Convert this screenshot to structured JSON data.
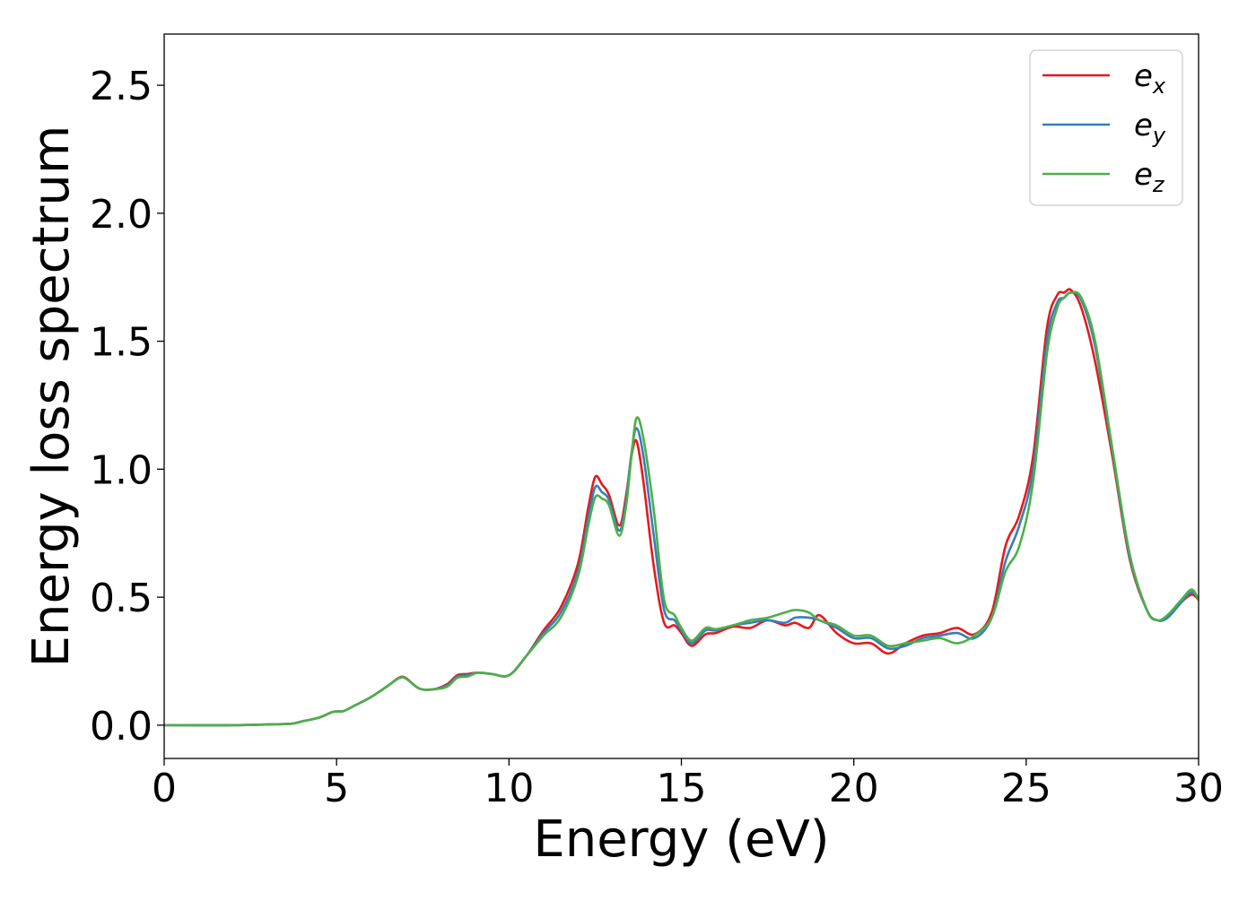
{
  "chart_data": {
    "type": "line",
    "title": "",
    "xlabel": "Energy (eV)",
    "ylabel": "Energy loss spectrum",
    "xlim": [
      0,
      30
    ],
    "ylim": [
      -0.13,
      2.7
    ],
    "xticks": [
      0,
      5,
      10,
      15,
      20,
      25,
      30
    ],
    "xtick_labels": [
      "0",
      "5",
      "10",
      "15",
      "20",
      "25",
      "30"
    ],
    "yticks": [
      0.0,
      0.5,
      1.0,
      1.5,
      2.0,
      2.5
    ],
    "ytick_labels": [
      "0.0",
      "0.5",
      "1.0",
      "1.5",
      "2.0",
      "2.5"
    ],
    "grid": false,
    "legend_position": "top-right",
    "series": [
      {
        "name": "e_x",
        "label_base": "e",
        "label_sub": "x",
        "color": "#e41a1c",
        "x": [
          0,
          2,
          3,
          3.7,
          4,
          4.5,
          4.9,
          5.2,
          5.5,
          6,
          6.5,
          6.8,
          7,
          7.4,
          7.8,
          8.2,
          8.5,
          8.8,
          9.1,
          9.5,
          10,
          10.5,
          11,
          11.5,
          12,
          12.3,
          12.5,
          12.7,
          12.9,
          13.2,
          13.4,
          13.55,
          13.7,
          13.9,
          14.2,
          14.5,
          14.8,
          15,
          15.3,
          15.7,
          16,
          16.5,
          17,
          17.5,
          18,
          18.3,
          18.7,
          19,
          19.5,
          20,
          20.5,
          21,
          21.5,
          22,
          22.5,
          23,
          23.5,
          24,
          24.4,
          24.8,
          25.2,
          25.6,
          25.9,
          26.1,
          26.3,
          26.6,
          27,
          27.5,
          28,
          28.5,
          28.8,
          29.1,
          29.5,
          29.8,
          30
        ],
        "values": [
          0.0,
          0.0,
          0.003,
          0.006,
          0.015,
          0.03,
          0.052,
          0.055,
          0.075,
          0.11,
          0.155,
          0.185,
          0.185,
          0.143,
          0.14,
          0.16,
          0.195,
          0.2,
          0.205,
          0.2,
          0.195,
          0.27,
          0.37,
          0.46,
          0.63,
          0.85,
          0.97,
          0.94,
          0.9,
          0.78,
          0.9,
          1.05,
          1.11,
          0.95,
          0.62,
          0.4,
          0.39,
          0.36,
          0.31,
          0.355,
          0.36,
          0.385,
          0.38,
          0.41,
          0.39,
          0.4,
          0.38,
          0.43,
          0.36,
          0.32,
          0.32,
          0.28,
          0.32,
          0.35,
          0.36,
          0.38,
          0.355,
          0.44,
          0.7,
          0.82,
          1.05,
          1.55,
          1.68,
          1.69,
          1.7,
          1.63,
          1.42,
          1.05,
          0.65,
          0.45,
          0.41,
          0.42,
          0.48,
          0.51,
          0.49
        ]
      },
      {
        "name": "e_y",
        "label_base": "e",
        "label_sub": "y",
        "color": "#377eb8",
        "x": [
          0,
          2,
          3,
          3.7,
          4,
          4.5,
          4.9,
          5.2,
          5.5,
          6,
          6.5,
          6.8,
          7,
          7.4,
          7.8,
          8.2,
          8.5,
          8.8,
          9.1,
          9.5,
          10,
          10.5,
          11,
          11.5,
          12,
          12.3,
          12.5,
          12.7,
          12.9,
          13.2,
          13.4,
          13.55,
          13.7,
          13.9,
          14.2,
          14.5,
          14.8,
          15,
          15.3,
          15.7,
          16,
          16.5,
          17,
          17.5,
          18,
          18.3,
          18.7,
          19,
          19.5,
          20,
          20.5,
          21,
          21.5,
          22,
          22.5,
          23,
          23.5,
          24,
          24.4,
          24.8,
          25.2,
          25.6,
          25.9,
          26.1,
          26.3,
          26.6,
          27,
          27.5,
          28,
          28.5,
          28.8,
          29.1,
          29.5,
          29.8,
          30
        ],
        "values": [
          0.0,
          0.0,
          0.003,
          0.006,
          0.015,
          0.03,
          0.052,
          0.055,
          0.075,
          0.11,
          0.155,
          0.183,
          0.183,
          0.143,
          0.14,
          0.155,
          0.19,
          0.195,
          0.205,
          0.2,
          0.195,
          0.27,
          0.36,
          0.44,
          0.6,
          0.81,
          0.93,
          0.91,
          0.88,
          0.76,
          0.88,
          1.06,
          1.16,
          1.05,
          0.74,
          0.45,
          0.41,
          0.37,
          0.32,
          0.37,
          0.37,
          0.39,
          0.4,
          0.41,
          0.4,
          0.42,
          0.42,
          0.41,
          0.38,
          0.34,
          0.34,
          0.3,
          0.31,
          0.34,
          0.35,
          0.36,
          0.34,
          0.42,
          0.64,
          0.78,
          1.0,
          1.5,
          1.65,
          1.67,
          1.69,
          1.66,
          1.48,
          1.07,
          0.66,
          0.45,
          0.41,
          0.42,
          0.48,
          0.52,
          0.49
        ]
      },
      {
        "name": "e_z",
        "label_base": "e",
        "label_sub": "z",
        "color": "#4daf4a",
        "x": [
          0,
          2,
          3,
          3.7,
          4,
          4.5,
          4.9,
          5.2,
          5.5,
          6,
          6.5,
          6.8,
          7,
          7.4,
          7.8,
          8.2,
          8.5,
          8.8,
          9.1,
          9.5,
          10,
          10.5,
          11,
          11.5,
          12,
          12.3,
          12.5,
          12.7,
          12.9,
          13.2,
          13.4,
          13.55,
          13.7,
          13.9,
          14.2,
          14.5,
          14.8,
          15,
          15.3,
          15.7,
          16,
          16.5,
          17,
          17.5,
          18,
          18.3,
          18.7,
          19,
          19.5,
          20,
          20.5,
          21,
          21.5,
          22,
          22.5,
          23,
          23.5,
          24,
          24.4,
          24.8,
          25.2,
          25.6,
          25.9,
          26.1,
          26.3,
          26.6,
          27,
          27.5,
          28,
          28.5,
          28.8,
          29.1,
          29.5,
          29.8,
          30
        ],
        "values": [
          0.0,
          0.0,
          0.003,
          0.006,
          0.015,
          0.03,
          0.052,
          0.055,
          0.075,
          0.11,
          0.155,
          0.183,
          0.183,
          0.143,
          0.14,
          0.15,
          0.185,
          0.19,
          0.205,
          0.2,
          0.195,
          0.27,
          0.35,
          0.42,
          0.58,
          0.78,
          0.89,
          0.885,
          0.86,
          0.74,
          0.86,
          1.05,
          1.2,
          1.12,
          0.84,
          0.49,
          0.43,
          0.38,
          0.33,
          0.38,
          0.375,
          0.39,
          0.41,
          0.42,
          0.44,
          0.45,
          0.44,
          0.41,
          0.39,
          0.35,
          0.35,
          0.31,
          0.32,
          0.33,
          0.34,
          0.32,
          0.35,
          0.42,
          0.6,
          0.7,
          0.95,
          1.45,
          1.63,
          1.67,
          1.69,
          1.67,
          1.5,
          1.08,
          0.67,
          0.45,
          0.41,
          0.43,
          0.49,
          0.53,
          0.49
        ]
      }
    ]
  }
}
